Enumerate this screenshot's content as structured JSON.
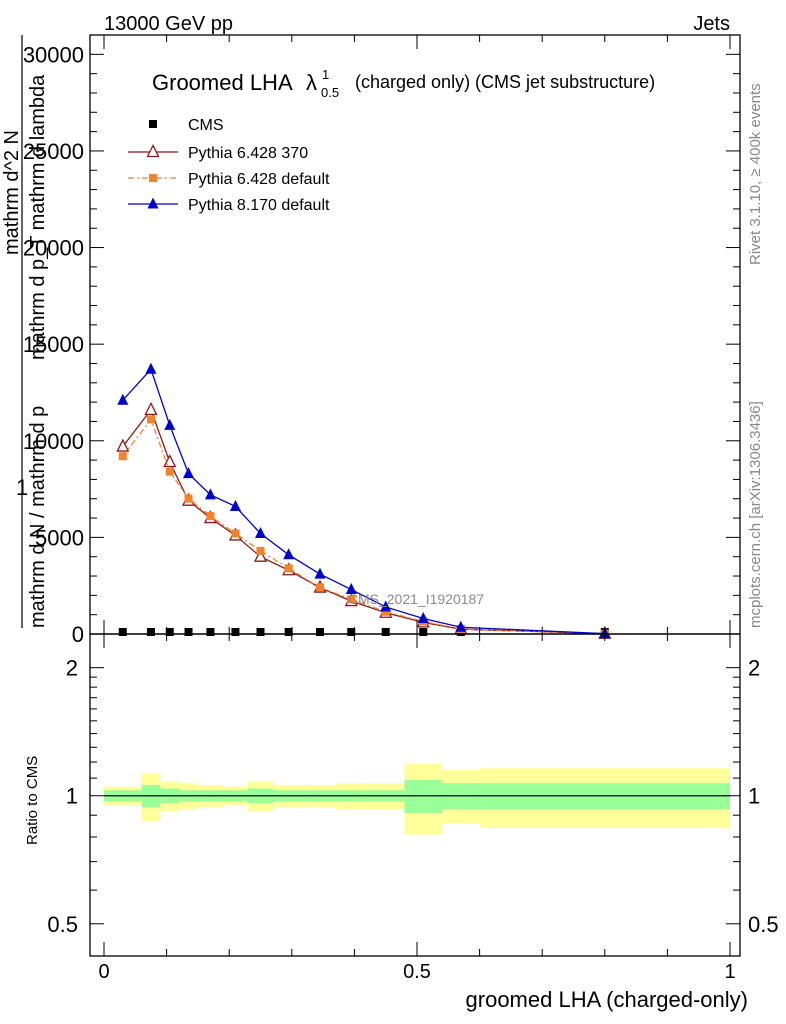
{
  "header": {
    "left": "13000 GeV pp",
    "right": "Jets"
  },
  "side_labels": {
    "rivet": "Rivet 3.1.10, ≥ 400k events",
    "mcplots": "mcplots.cern.ch [arXiv:1306.3436]"
  },
  "watermark": "CMS_2021_I1920187",
  "chart_data": [
    {
      "type": "line",
      "title_main": "Groomed LHA",
      "title_symbol": "λ",
      "title_sup": "1",
      "title_sub": "0.5",
      "title_rest": "(charged only) (CMS jet substructure)",
      "ylabel_fraction_top": "1",
      "ylabel_lines": [
        "mathrm d N / mathrm d p",
        "mathrm d^2 N",
        "mathrm d p_T mathrm d lambda"
      ],
      "ylabel_clean": "mathrm dN / mathrm d p_T mathrm d lambda",
      "ylim": [
        0,
        31000
      ],
      "yticks": [
        0,
        5000,
        10000,
        15000,
        20000,
        25000,
        30000
      ],
      "ytick_labels": [
        "0",
        "5000",
        "10000",
        "15000",
        "20000",
        "25000",
        "30000"
      ],
      "xlim": [
        -0.02,
        1.0
      ],
      "x": [
        0.03,
        0.075,
        0.105,
        0.135,
        0.17,
        0.21,
        0.25,
        0.295,
        0.345,
        0.395,
        0.45,
        0.51,
        0.57,
        0.8
      ],
      "series": [
        {
          "name": "CMS",
          "color": "#000000",
          "marker": "square",
          "values": [
            80,
            80,
            80,
            80,
            80,
            80,
            80,
            80,
            80,
            80,
            80,
            80,
            20,
            5
          ]
        },
        {
          "name": "Pythia 6.428 370",
          "color": "#8b1a1a",
          "marker": "open-triangle",
          "values": [
            9700,
            11600,
            8900,
            6900,
            6000,
            5100,
            4000,
            3300,
            2400,
            1700,
            1100,
            600,
            250,
            15
          ]
        },
        {
          "name": "Pythia 6.428 default",
          "color": "#f5822a",
          "marker": "square",
          "dash": true,
          "values": [
            9200,
            11100,
            8400,
            7000,
            6100,
            5200,
            4300,
            3400,
            2400,
            1800,
            1150,
            650,
            260,
            15
          ]
        },
        {
          "name": "Pythia 8.170 default",
          "color": "#0000cc",
          "marker": "triangle",
          "values": [
            12100,
            13700,
            10800,
            8300,
            7200,
            6600,
            5200,
            4100,
            3100,
            2300,
            1400,
            800,
            350,
            20
          ]
        }
      ]
    },
    {
      "type": "area",
      "ylabel": "Ratio to CMS",
      "xlabel": "groomed LHA (charged-only)",
      "scale": "log",
      "ylim": [
        0.42,
        2.4
      ],
      "yticks": [
        0.5,
        1,
        2
      ],
      "ytick_labels": [
        "0.5",
        "1",
        "2"
      ],
      "xticks": [
        0,
        0.5,
        1
      ],
      "xtick_labels": [
        "0",
        "0.5",
        "1"
      ],
      "bin_edges": [
        0.0,
        0.06,
        0.09,
        0.12,
        0.15,
        0.19,
        0.23,
        0.27,
        0.32,
        0.37,
        0.42,
        0.48,
        0.54,
        0.6,
        1.0
      ],
      "band_inner": {
        "color": "#99ff99",
        "lo": [
          0.97,
          0.94,
          0.96,
          0.97,
          0.97,
          0.97,
          0.96,
          0.97,
          0.97,
          0.97,
          0.97,
          0.91,
          0.93,
          0.93
        ],
        "hi": [
          1.03,
          1.06,
          1.04,
          1.03,
          1.03,
          1.03,
          1.04,
          1.03,
          1.03,
          1.03,
          1.03,
          1.09,
          1.07,
          1.07
        ]
      },
      "band_outer": {
        "color": "#ffff99",
        "lo": [
          0.95,
          0.87,
          0.92,
          0.93,
          0.94,
          0.95,
          0.92,
          0.94,
          0.94,
          0.93,
          0.93,
          0.81,
          0.86,
          0.84
        ],
        "hi": [
          1.05,
          1.13,
          1.08,
          1.07,
          1.06,
          1.05,
          1.08,
          1.06,
          1.06,
          1.07,
          1.07,
          1.19,
          1.15,
          1.16
        ]
      }
    }
  ]
}
